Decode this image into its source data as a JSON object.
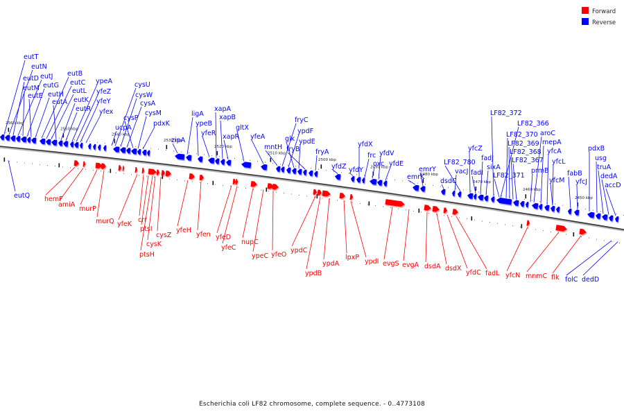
{
  "title": "Escherichia coli LF82 chromosome, complete sequence. - 0..4773108",
  "legend": [
    {
      "label": "Forward",
      "color": "#ff0000"
    },
    {
      "label": "Reverse",
      "color": "#0000ff"
    }
  ],
  "scale_labels": [
    "2560 kbp",
    "2550 kbp",
    "2540 kbp",
    "2530 kbp",
    "2520 kbp",
    "2510 kbp",
    "2500 kbp",
    "2490 kbp",
    "2480 kbp",
    "2470 kbp",
    "2460 kbp",
    "2450 kbp"
  ],
  "reverse_genes": [
    "eutT",
    "eutN",
    "eutD",
    "eutJ",
    "eutM",
    "eutG",
    "eutE",
    "eutH",
    "eutB",
    "eutC",
    "eutL",
    "eutA",
    "eutK",
    "eutR",
    "eutQ",
    "ypeA",
    "yfeZ",
    "yfeY",
    "yfex",
    "cysU",
    "cysW",
    "cysA",
    "cysP",
    "cysM",
    "ucpA",
    "pdxK",
    "zipA",
    "ligA",
    "ypeB",
    "yfeR",
    "xapA",
    "xapB",
    "xapR",
    "gltX",
    "yfeA",
    "mntH",
    "fryC",
    "ypdF",
    "glk",
    "ypdE",
    "fryB",
    "fryA",
    "yfdZ",
    "yfdY",
    "yfdX",
    "frc",
    "oxc",
    "yfdV",
    "yfdE",
    "emrY",
    "emrK",
    "dsdC",
    "vacJ",
    "LF82_780",
    "yfcZ",
    "fadI",
    "fadJ",
    "sixA",
    "LF82_372",
    "LF82_366",
    "LF82_370",
    "LF82_369",
    "LF82_368",
    "LF82_367",
    "LF82_371",
    "aroC",
    "mepA",
    "yfcA",
    "yfcL",
    "prmB",
    "yfcM",
    "fabB",
    "yfcJ",
    "pdxB",
    "usg",
    "truA",
    "dedA",
    "accD",
    "folC",
    "dedD"
  ],
  "forward_genes": [
    "hemF",
    "amiA",
    "murP",
    "murQ",
    "yfeK",
    "crr",
    "ptsI",
    "cysZ",
    "cysK",
    "ptsH",
    "yfeH",
    "yfen",
    "yfeD",
    "yfeC",
    "nupC",
    "ypeC",
    "yfeO",
    "ypdC",
    "ypdB",
    "ypdA",
    "lpxP",
    "ypdI",
    "evgS",
    "evgA",
    "dsdA",
    "dsdX",
    "yfdC",
    "fadL",
    "yfcN",
    "mnmC",
    "flk"
  ]
}
